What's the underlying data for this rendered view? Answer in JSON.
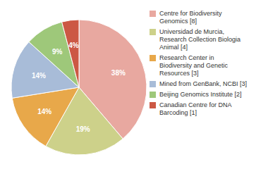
{
  "chart_data": {
    "type": "pie",
    "categories": [
      "Centre for Biodiversity\nGenomics [8]",
      "Universidad de Murcia,\nResearch Collection Biologia\nAnimal [4]",
      "Research Center in\nBiodiversity and Genetic\nResources [3]",
      "Mined from GenBank, NCBI [3]",
      "Beijing Genomics Institute [2]",
      "Canadian Centre for DNA\nBarcoding [1]"
    ],
    "values": [
      38,
      19,
      14,
      14,
      9,
      4
    ],
    "value_labels": [
      "38%",
      "19%",
      "14%",
      "14%",
      "9%",
      "4%"
    ],
    "colors": [
      "#e8a8a0",
      "#cdd18a",
      "#e8a84a",
      "#a8bcd8",
      "#9ec87a",
      "#cc5844"
    ],
    "data_labels": true,
    "legend": "right"
  }
}
